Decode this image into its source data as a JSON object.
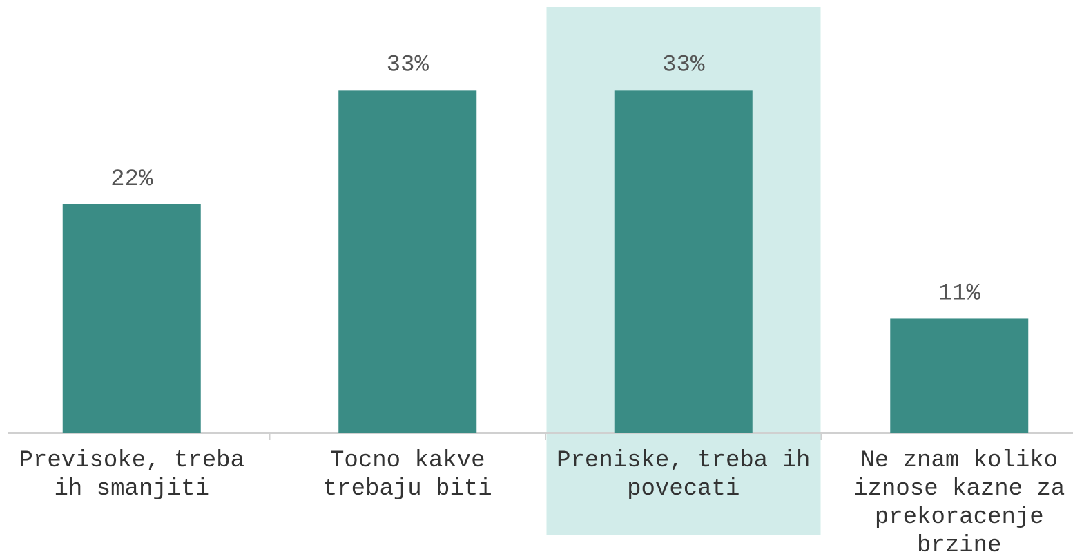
{
  "chart_data": {
    "type": "bar",
    "categories": [
      "Previsoke, treba ih smanjiti",
      "Tocno kakve trebaju biti",
      "Preniske, treba ih povecati",
      "Ne znam koliko iznose kazne za prekoracenje brzine"
    ],
    "values": [
      22,
      33,
      33,
      11
    ],
    "value_labels": [
      "22%",
      "33%",
      "33%",
      "11%"
    ],
    "color": "#3a8c85",
    "highlight": 1,
    "highlight_color": "#d2ecea",
    "ylim": [
      0,
      40
    ]
  }
}
